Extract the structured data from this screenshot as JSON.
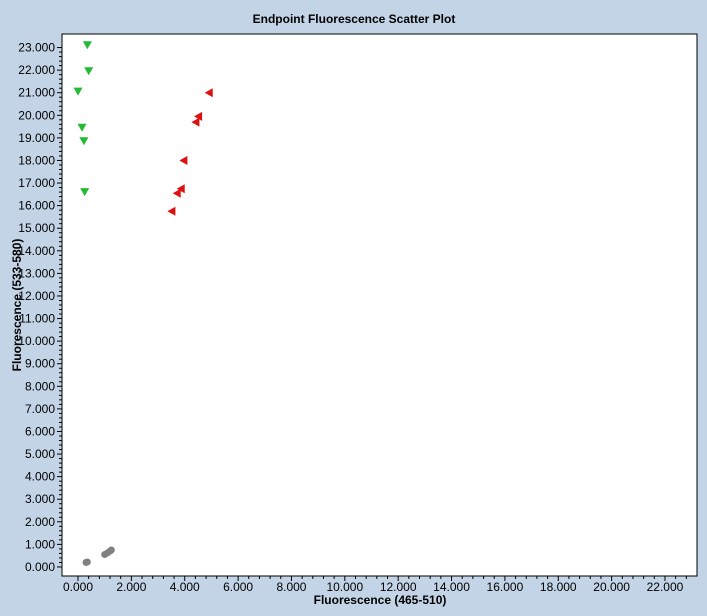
{
  "chart_data": {
    "type": "scatter",
    "title": "Endpoint Fluorescence Scatter Plot",
    "xlabel": "Fluorescence (465-510)",
    "ylabel": "Fluorescence (533-580)",
    "xlim": [
      -0.6,
      23.2
    ],
    "ylim": [
      -0.4,
      23.6
    ],
    "x_ticks": [
      0,
      2,
      4,
      6,
      8,
      10,
      12,
      14,
      16,
      18,
      20,
      22
    ],
    "x_tick_labels": [
      "0.000",
      "2.000",
      "4.000",
      "6.000",
      "8.000",
      "10.000",
      "12.000",
      "14.000",
      "16.000",
      "18.000",
      "20.000",
      "22.000"
    ],
    "y_ticks": [
      0,
      1,
      2,
      3,
      4,
      5,
      6,
      7,
      8,
      9,
      10,
      11,
      12,
      13,
      14,
      15,
      16,
      17,
      18,
      19,
      20,
      21,
      22,
      23
    ],
    "y_tick_labels": [
      "0.000",
      "1.000",
      "2.000",
      "3.000",
      "4.000",
      "5.000",
      "6.000",
      "7.000",
      "8.000",
      "9.000",
      "10.000",
      "11.000",
      "12.000",
      "13.000",
      "14.000",
      "15.000",
      "16.000",
      "17.000",
      "18.000",
      "19.000",
      "20.000",
      "21.000",
      "22.000",
      "23.000"
    ],
    "grid": false,
    "series": [
      {
        "marker": "triangle-down",
        "color": "#22bb33",
        "points": [
          {
            "x": 0.35,
            "y": 23.1
          },
          {
            "x": 0.4,
            "y": 21.95
          },
          {
            "x": 0.0,
            "y": 21.05
          },
          {
            "x": 0.15,
            "y": 19.45
          },
          {
            "x": 0.22,
            "y": 18.85
          },
          {
            "x": 0.25,
            "y": 16.6
          }
        ]
      },
      {
        "marker": "triangle-left",
        "color": "#dd1111",
        "points": [
          {
            "x": 4.9,
            "y": 21.0
          },
          {
            "x": 4.5,
            "y": 19.95
          },
          {
            "x": 4.4,
            "y": 19.7
          },
          {
            "x": 3.95,
            "y": 18.0
          },
          {
            "x": 3.85,
            "y": 16.75
          },
          {
            "x": 3.7,
            "y": 16.55
          },
          {
            "x": 3.5,
            "y": 15.75
          }
        ]
      },
      {
        "marker": "circle",
        "color": "#808080",
        "points": [
          {
            "x": 0.3,
            "y": 0.2
          },
          {
            "x": 0.35,
            "y": 0.22
          },
          {
            "x": 1.0,
            "y": 0.55
          },
          {
            "x": 1.1,
            "y": 0.62
          },
          {
            "x": 1.2,
            "y": 0.7
          },
          {
            "x": 1.25,
            "y": 0.75
          }
        ]
      }
    ]
  }
}
